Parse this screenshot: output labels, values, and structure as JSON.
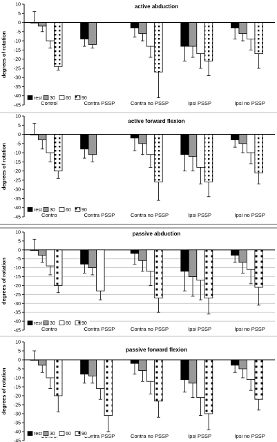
{
  "chart_data": [
    {
      "type": "bar",
      "title": "active abduction",
      "ylabel": "degrees of rotation",
      "ylim": [
        -45,
        10
      ],
      "yticks": [
        10,
        5,
        0,
        -5,
        -10,
        -15,
        -20,
        -25,
        -30,
        -35,
        -40,
        -45
      ],
      "categories": [
        "Control",
        "Contra PSSP",
        "Contra no PSSP",
        "Ipsi PSSP",
        "Ipsi no PSSP"
      ],
      "legend_position": "bottom-left",
      "series": [
        {
          "name": "rest",
          "values": [
            0,
            -9,
            -3,
            -13,
            -3
          ],
          "errors": [
            6,
            4,
            5,
            8,
            6
          ]
        },
        {
          "name": "30",
          "values": [
            -2,
            -12,
            -6,
            -13,
            -6
          ],
          "errors": [
            3,
            2,
            4,
            6,
            4
          ]
        },
        {
          "name": "60",
          "values": [
            -10,
            null,
            -13,
            -17,
            -9
          ],
          "errors": [
            4,
            null,
            6,
            8,
            6
          ]
        },
        {
          "name": "90",
          "values": [
            -24,
            null,
            -27,
            -21,
            -17
          ],
          "errors": [
            2,
            null,
            14,
            8,
            8
          ]
        }
      ]
    },
    {
      "type": "bar",
      "title": "active forward flexion",
      "ylabel": "degrees of rotation",
      "ylim": [
        -45,
        10
      ],
      "yticks": [
        10,
        5,
        0,
        -5,
        -10,
        -15,
        -20,
        -25,
        -30,
        -35,
        -40,
        -45
      ],
      "categories": [
        "Contro",
        "Contra PSSP",
        "Contra no PSSP",
        "Ipsi PSSP",
        "Ipsi no PSSP"
      ],
      "legend_position": "bottom-left",
      "series": [
        {
          "name": "rest",
          "values": [
            0,
            -8,
            -2,
            -11,
            -3
          ],
          "errors": [
            6,
            5,
            7,
            9,
            4
          ]
        },
        {
          "name": "30",
          "values": [
            -3,
            -11,
            -5,
            -12,
            -5
          ],
          "errors": [
            5,
            4,
            6,
            8,
            5
          ]
        },
        {
          "name": "60",
          "values": [
            -10,
            null,
            -11,
            -18,
            -10
          ],
          "errors": [
            5,
            null,
            7,
            9,
            6
          ]
        },
        {
          "name": "90",
          "values": [
            -20,
            null,
            -26,
            -26,
            -21
          ],
          "errors": [
            4,
            null,
            10,
            8,
            6
          ]
        }
      ]
    },
    {
      "type": "bar",
      "title": "passive abduction",
      "ylabel": "degrees of rotation",
      "ylim": [
        -45,
        10
      ],
      "yticks": [
        10,
        5,
        0,
        -5,
        -10,
        -15,
        -20,
        -25,
        -30,
        -35,
        -40,
        -45
      ],
      "categories": [
        "Contro",
        "Contra PSSP",
        "Contra no PSSP",
        "Ipsi PSSP",
        "Ipsi no PSSP"
      ],
      "legend_position": "bottom-left",
      "series": [
        {
          "name": "rest",
          "values": [
            0,
            -8,
            -2,
            -12,
            -3
          ],
          "errors": [
            6,
            5,
            6,
            11,
            4
          ]
        },
        {
          "name": "30",
          "values": [
            -3,
            -10,
            -6,
            -15,
            -7
          ],
          "errors": [
            4,
            4,
            6,
            11,
            6
          ]
        },
        {
          "name": "60",
          "values": [
            -9,
            -23,
            -12,
            -17,
            -11
          ],
          "errors": [
            5,
            5,
            8,
            11,
            8
          ]
        },
        {
          "name": "90",
          "values": [
            -20,
            null,
            -27,
            -27,
            -21
          ],
          "errors": [
            4,
            null,
            8,
            9,
            10
          ]
        }
      ]
    },
    {
      "type": "bar",
      "title": "passive forward flexion",
      "ylabel": "degrees of rotation",
      "ylim": [
        -45,
        10
      ],
      "yticks": [
        10,
        5,
        0,
        -5,
        -10,
        -15,
        -20,
        -25,
        -30,
        -35,
        -40,
        -45
      ],
      "categories": [
        "Control",
        "Contra PSSP",
        "Contra no PSSP",
        "Ipsi PSSP",
        "Ipsi no PSSP"
      ],
      "legend_position": "bottom-left",
      "series": [
        {
          "name": "rest",
          "values": [
            0,
            -8,
            -2,
            -11,
            -3
          ],
          "errors": [
            5,
            5,
            6,
            7,
            4
          ]
        },
        {
          "name": "30",
          "values": [
            -3,
            -9,
            -6,
            -13,
            -5
          ],
          "errors": [
            4,
            4,
            6,
            8,
            5
          ]
        },
        {
          "name": "60",
          "values": [
            -10,
            -16,
            -12,
            -21,
            -11
          ],
          "errors": [
            6,
            6,
            7,
            10,
            6
          ]
        },
        {
          "name": "90",
          "values": [
            -20,
            -31,
            -23,
            -30,
            -22
          ],
          "errors": [
            9,
            9,
            9,
            9,
            6
          ]
        }
      ]
    }
  ]
}
